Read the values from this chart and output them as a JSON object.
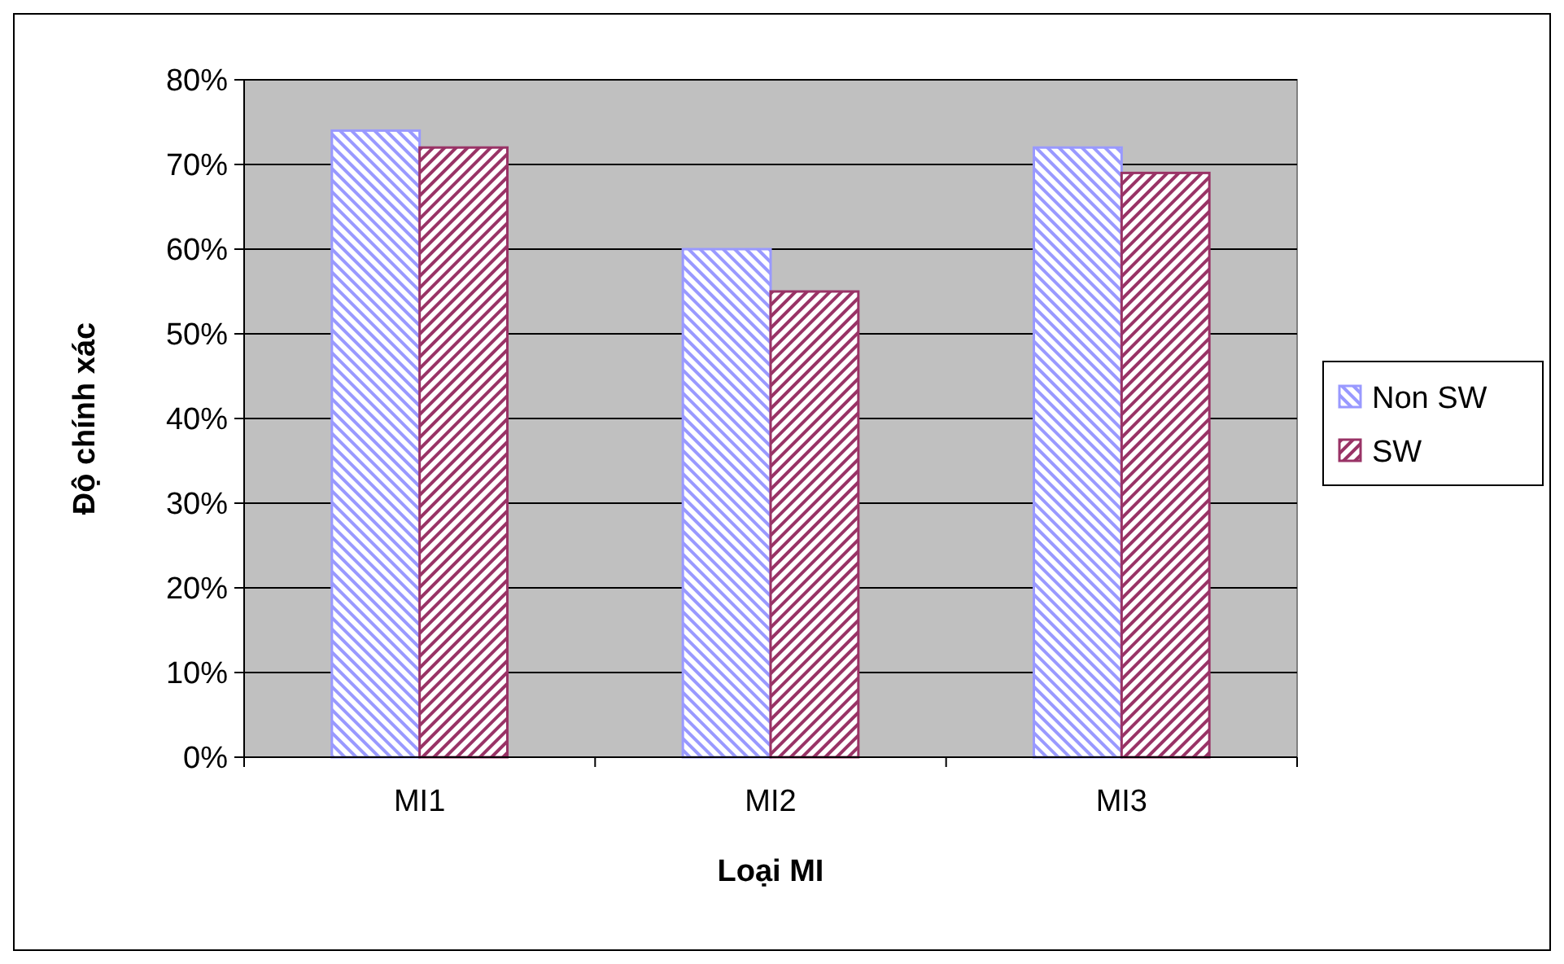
{
  "chart_data": {
    "type": "bar",
    "xlabel": "Loại MI",
    "ylabel": "Độ chính xác",
    "categories": [
      "MI1",
      "MI2",
      "MI3"
    ],
    "series": [
      {
        "name": "Non SW",
        "color": "#9999ff",
        "values": [
          74,
          60,
          72
        ]
      },
      {
        "name": "SW",
        "color": "#993366",
        "values": [
          72,
          55,
          69
        ]
      }
    ],
    "ylim": [
      0,
      80
    ],
    "yticks": [
      {
        "value": 0,
        "label": "0%"
      },
      {
        "value": 10,
        "label": "10%"
      },
      {
        "value": 20,
        "label": "20%"
      },
      {
        "value": 30,
        "label": "30%"
      },
      {
        "value": 40,
        "label": "40%"
      },
      {
        "value": 50,
        "label": "50%"
      },
      {
        "value": 60,
        "label": "60%"
      },
      {
        "value": 70,
        "label": "70%"
      },
      {
        "value": 80,
        "label": "80%"
      }
    ],
    "grid": "y",
    "legend": "right"
  }
}
